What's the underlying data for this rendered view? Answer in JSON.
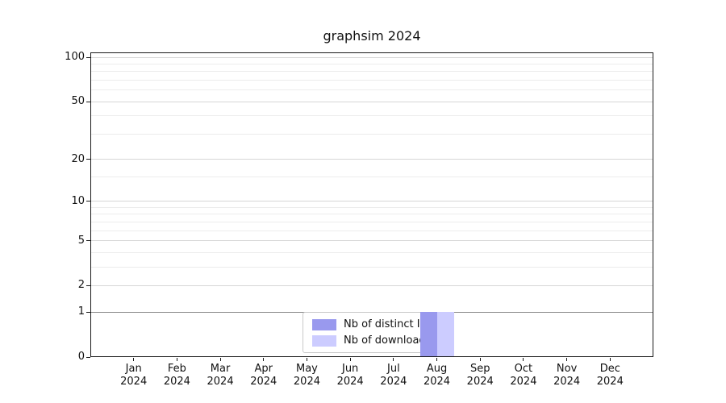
{
  "chart_data": {
    "type": "bar",
    "title": "graphsim 2024",
    "categories": [
      "Jan\n2024",
      "Feb\n2024",
      "Mar\n2024",
      "Apr\n2024",
      "May\n2024",
      "Jun\n2024",
      "Jul\n2024",
      "Aug\n2024",
      "Sep\n2024",
      "Oct\n2024",
      "Nov\n2024",
      "Dec\n2024"
    ],
    "series": [
      {
        "name": "Nb of distinct IPs",
        "color": "#9999ee",
        "values": [
          0,
          0,
          0,
          0,
          0,
          0,
          0,
          1,
          0,
          0,
          0,
          0
        ]
      },
      {
        "name": "Nb of downloads",
        "color": "#ccccff",
        "values": [
          0,
          0,
          0,
          0,
          0,
          0,
          0,
          1,
          0,
          0,
          0,
          0
        ]
      }
    ],
    "xlabel": "",
    "ylabel": "",
    "y_axis": {
      "scale": "log1p",
      "range": [
        0,
        108
      ],
      "major_ticks": [
        0,
        1,
        2,
        5,
        10,
        20,
        50,
        100
      ],
      "minor_ticks": [
        3,
        4,
        6,
        7,
        8,
        9,
        15,
        30,
        40,
        60,
        70,
        80,
        90
      ],
      "emphasized_gridline": 1
    },
    "legend": {
      "position": "lower center",
      "entries": [
        "Nb of distinct IPs",
        "Nb of downloads"
      ]
    },
    "grid": true,
    "colors": {
      "background": "#ffffff",
      "axis": "#1a1a1a",
      "grid_major": "#d6d6d6",
      "grid_minor": "#ececec",
      "grid_emphasis": "#8a8a8a",
      "text": "#111111"
    }
  }
}
